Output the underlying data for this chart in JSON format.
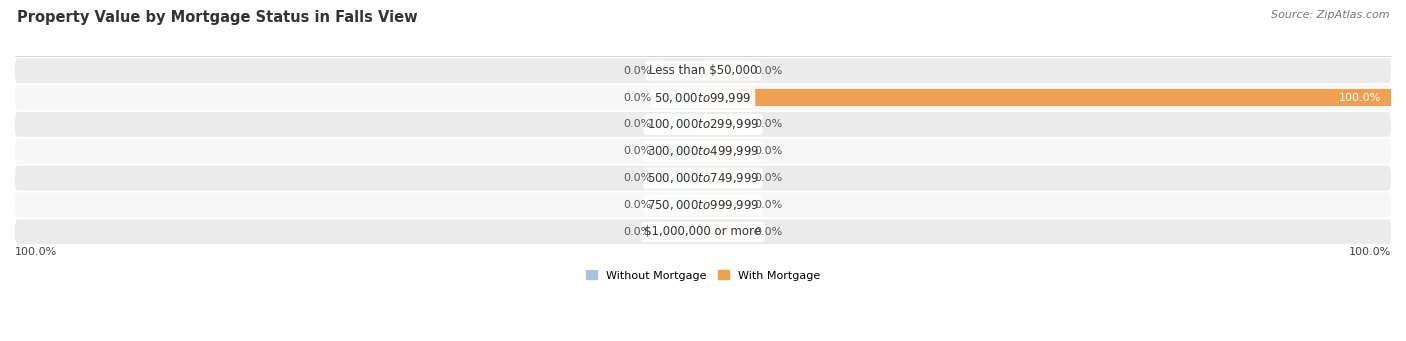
{
  "title": "Property Value by Mortgage Status in Falls View",
  "source": "Source: ZipAtlas.com",
  "categories": [
    "Less than $50,000",
    "$50,000 to $99,999",
    "$100,000 to $299,999",
    "$300,000 to $499,999",
    "$500,000 to $749,999",
    "$750,000 to $999,999",
    "$1,000,000 or more"
  ],
  "without_mortgage": [
    0.0,
    0.0,
    0.0,
    0.0,
    0.0,
    0.0,
    0.0
  ],
  "with_mortgage": [
    0.0,
    100.0,
    0.0,
    0.0,
    0.0,
    0.0,
    0.0
  ],
  "color_without": "#a8c4dc",
  "color_with_zero": "#f5c89a",
  "color_with_full": "#f0a050",
  "bg_row_light": "#ebebeb",
  "bg_row_white": "#f7f7f7",
  "label_bottom_left": "100.0%",
  "label_bottom_right": "100.0%",
  "xlim_left": -100,
  "xlim_right": 100,
  "stub_size": 6,
  "bar_height": 0.62,
  "title_fontsize": 10.5,
  "source_fontsize": 8,
  "annot_fontsize": 8,
  "cat_fontsize": 8.5,
  "legend_fontsize": 8
}
